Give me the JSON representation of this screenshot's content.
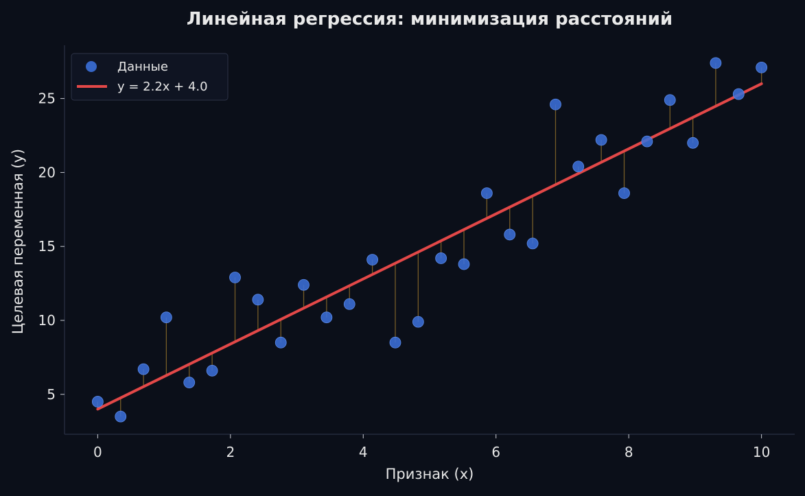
{
  "chart_data": {
    "type": "scatter",
    "title": "Линейная регрессия: минимизация расстояний",
    "xlabel": "Признак (x)",
    "ylabel": "Целевая переменная (y)",
    "xlim": [
      -0.5,
      10.5
    ],
    "ylim": [
      2.3,
      28.6
    ],
    "xticks": [
      0,
      2,
      4,
      6,
      8,
      10
    ],
    "yticks": [
      5,
      10,
      15,
      20,
      25
    ],
    "grid": false,
    "legend_position": "top-left",
    "series": [
      {
        "name": "Данные",
        "kind": "scatter",
        "color": "#3b6fd8",
        "x": [
          0,
          0.345,
          0.69,
          1.034,
          1.379,
          1.724,
          2.069,
          2.414,
          2.759,
          3.103,
          3.448,
          3.793,
          4.138,
          4.483,
          4.828,
          5.172,
          5.517,
          5.862,
          6.207,
          6.552,
          6.897,
          7.241,
          7.586,
          7.931,
          8.276,
          8.621,
          8.966,
          9.31,
          9.655,
          10
        ],
        "y": [
          4.5,
          3.5,
          6.7,
          10.2,
          5.8,
          6.6,
          12.9,
          11.4,
          8.5,
          12.4,
          10.2,
          11.1,
          14.1,
          8.5,
          9.9,
          14.2,
          13.8,
          18.6,
          15.8,
          15.2,
          24.6,
          20.4,
          22.2,
          18.6,
          22.1,
          24.9,
          22.0,
          27.4,
          25.3,
          27.1
        ]
      },
      {
        "name": "y = 2.2x + 4.0",
        "kind": "line",
        "color": "#e34848",
        "slope": 2.2,
        "intercept": 4.0
      }
    ],
    "residuals": {
      "color": "#8a6a2a"
    }
  }
}
